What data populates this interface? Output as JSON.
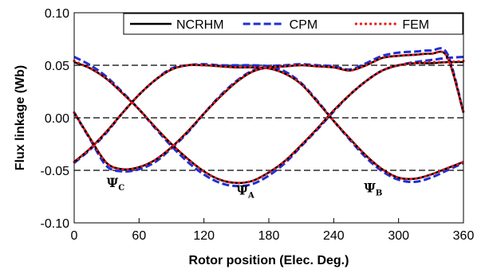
{
  "chart_data": {
    "type": "line",
    "xlabel": "Rotor position (Elec. Deg.)",
    "ylabel": "Flux linkage (Wb)",
    "xlim": [
      0,
      360
    ],
    "ylim": [
      -0.1,
      0.1
    ],
    "x_ticks": [
      "0",
      "60",
      "120",
      "180",
      "240",
      "300",
      "360"
    ],
    "y_ticks": [
      "-0.10",
      "-0.05",
      "0.00",
      "0.05",
      "0.10"
    ],
    "y_ticks_values": [
      -0.1,
      -0.05,
      0,
      0.05,
      0.1
    ],
    "x_ticks_values": [
      0,
      60,
      120,
      180,
      240,
      300,
      360
    ],
    "grid": "dashed horizontal at y = -0.05, 0.00, 0.05",
    "legend": {
      "placement": "top-right",
      "entries": [
        "NCRHM",
        "CPM",
        "FEM"
      ]
    },
    "x": [
      0,
      15,
      30,
      45,
      60,
      75,
      90,
      105,
      120,
      135,
      150,
      165,
      180,
      195,
      210,
      225,
      240,
      255,
      270,
      285,
      300,
      315,
      330,
      345,
      360
    ],
    "phases": [
      {
        "name": "Ψ_A",
        "label_main": "Ψ",
        "label_sub": "A",
        "label_at": [
          150,
          -0.073
        ],
        "series": [
          {
            "name": "NCRHM",
            "values": [
              0.053,
              0.047,
              0.037,
              0.023,
              0.008,
              -0.009,
              -0.025,
              -0.039,
              -0.051,
              -0.059,
              -0.062,
              -0.06,
              -0.052,
              -0.041,
              -0.026,
              -0.01,
              0.007,
              0.022,
              0.035,
              0.045,
              0.05,
              0.052,
              0.052,
              0.053,
              0.053
            ]
          },
          {
            "name": "CPM",
            "values": [
              0.058,
              0.05,
              0.039,
              0.024,
              0.008,
              -0.01,
              -0.027,
              -0.042,
              -0.054,
              -0.062,
              -0.065,
              -0.063,
              -0.055,
              -0.043,
              -0.027,
              -0.011,
              0.006,
              0.022,
              0.035,
              0.045,
              0.05,
              0.053,
              0.055,
              0.057,
              0.058
            ]
          },
          {
            "name": "FEM",
            "values": [
              0.054,
              0.047,
              0.037,
              0.023,
              0.008,
              -0.009,
              -0.025,
              -0.039,
              -0.051,
              -0.059,
              -0.062,
              -0.06,
              -0.052,
              -0.041,
              -0.026,
              -0.01,
              0.007,
              0.022,
              0.035,
              0.045,
              0.05,
              0.052,
              0.053,
              0.053,
              0.054
            ]
          }
        ]
      },
      {
        "name": "Ψ_B",
        "label_main": "Ψ",
        "label_sub": "B",
        "label_at": [
          268,
          -0.071
        ],
        "series": [
          {
            "name": "NCRHM",
            "values": [
              -0.042,
              -0.029,
              -0.013,
              0.005,
              0.022,
              0.036,
              0.046,
              0.05,
              0.05,
              0.049,
              0.048,
              0.048,
              0.047,
              0.042,
              0.032,
              0.015,
              -0.003,
              -0.02,
              -0.036,
              -0.049,
              -0.057,
              -0.058,
              -0.054,
              -0.048,
              -0.042
            ]
          },
          {
            "name": "CPM",
            "values": [
              -0.043,
              -0.03,
              -0.014,
              0.005,
              0.022,
              0.036,
              0.047,
              0.05,
              0.051,
              0.05,
              0.05,
              0.05,
              0.049,
              0.044,
              0.033,
              0.016,
              -0.003,
              -0.021,
              -0.038,
              -0.051,
              -0.059,
              -0.061,
              -0.057,
              -0.05,
              -0.043
            ]
          },
          {
            "name": "FEM",
            "values": [
              -0.042,
              -0.029,
              -0.013,
              0.005,
              0.022,
              0.036,
              0.046,
              0.05,
              0.05,
              0.049,
              0.048,
              0.048,
              0.047,
              0.042,
              0.032,
              0.015,
              -0.003,
              -0.02,
              -0.036,
              -0.049,
              -0.057,
              -0.058,
              -0.054,
              -0.048,
              -0.042
            ]
          }
        ]
      },
      {
        "name": "Ψ_C",
        "label_main": "Ψ",
        "label_sub": "C",
        "label_at": [
          30,
          -0.066
        ],
        "series": [
          {
            "name": "NCRHM",
            "values": [
              0.005,
              -0.02,
              -0.043,
              -0.049,
              -0.047,
              -0.04,
              -0.028,
              -0.013,
              0.004,
              0.02,
              0.034,
              0.044,
              0.048,
              0.049,
              0.05,
              0.049,
              0.048,
              0.045,
              0.05,
              0.057,
              0.059,
              0.06,
              0.061,
              0.058,
              0.005
            ]
          },
          {
            "name": "CPM",
            "values": [
              0.005,
              -0.021,
              -0.046,
              -0.051,
              -0.049,
              -0.042,
              -0.029,
              -0.014,
              0.004,
              0.021,
              0.035,
              0.045,
              0.049,
              0.05,
              0.051,
              0.05,
              0.049,
              0.046,
              0.052,
              0.059,
              0.062,
              0.063,
              0.064,
              0.061,
              0.005
            ]
          },
          {
            "name": "FEM",
            "values": [
              0.005,
              -0.02,
              -0.043,
              -0.049,
              -0.047,
              -0.04,
              -0.028,
              -0.013,
              0.004,
              0.02,
              0.034,
              0.044,
              0.048,
              0.049,
              0.05,
              0.049,
              0.048,
              0.045,
              0.05,
              0.057,
              0.059,
              0.06,
              0.061,
              0.058,
              0.005
            ]
          }
        ]
      }
    ],
    "colors": {
      "NCRHM": "#000000",
      "CPM": "#1f2fd6",
      "FEM": "#e8191c"
    }
  }
}
